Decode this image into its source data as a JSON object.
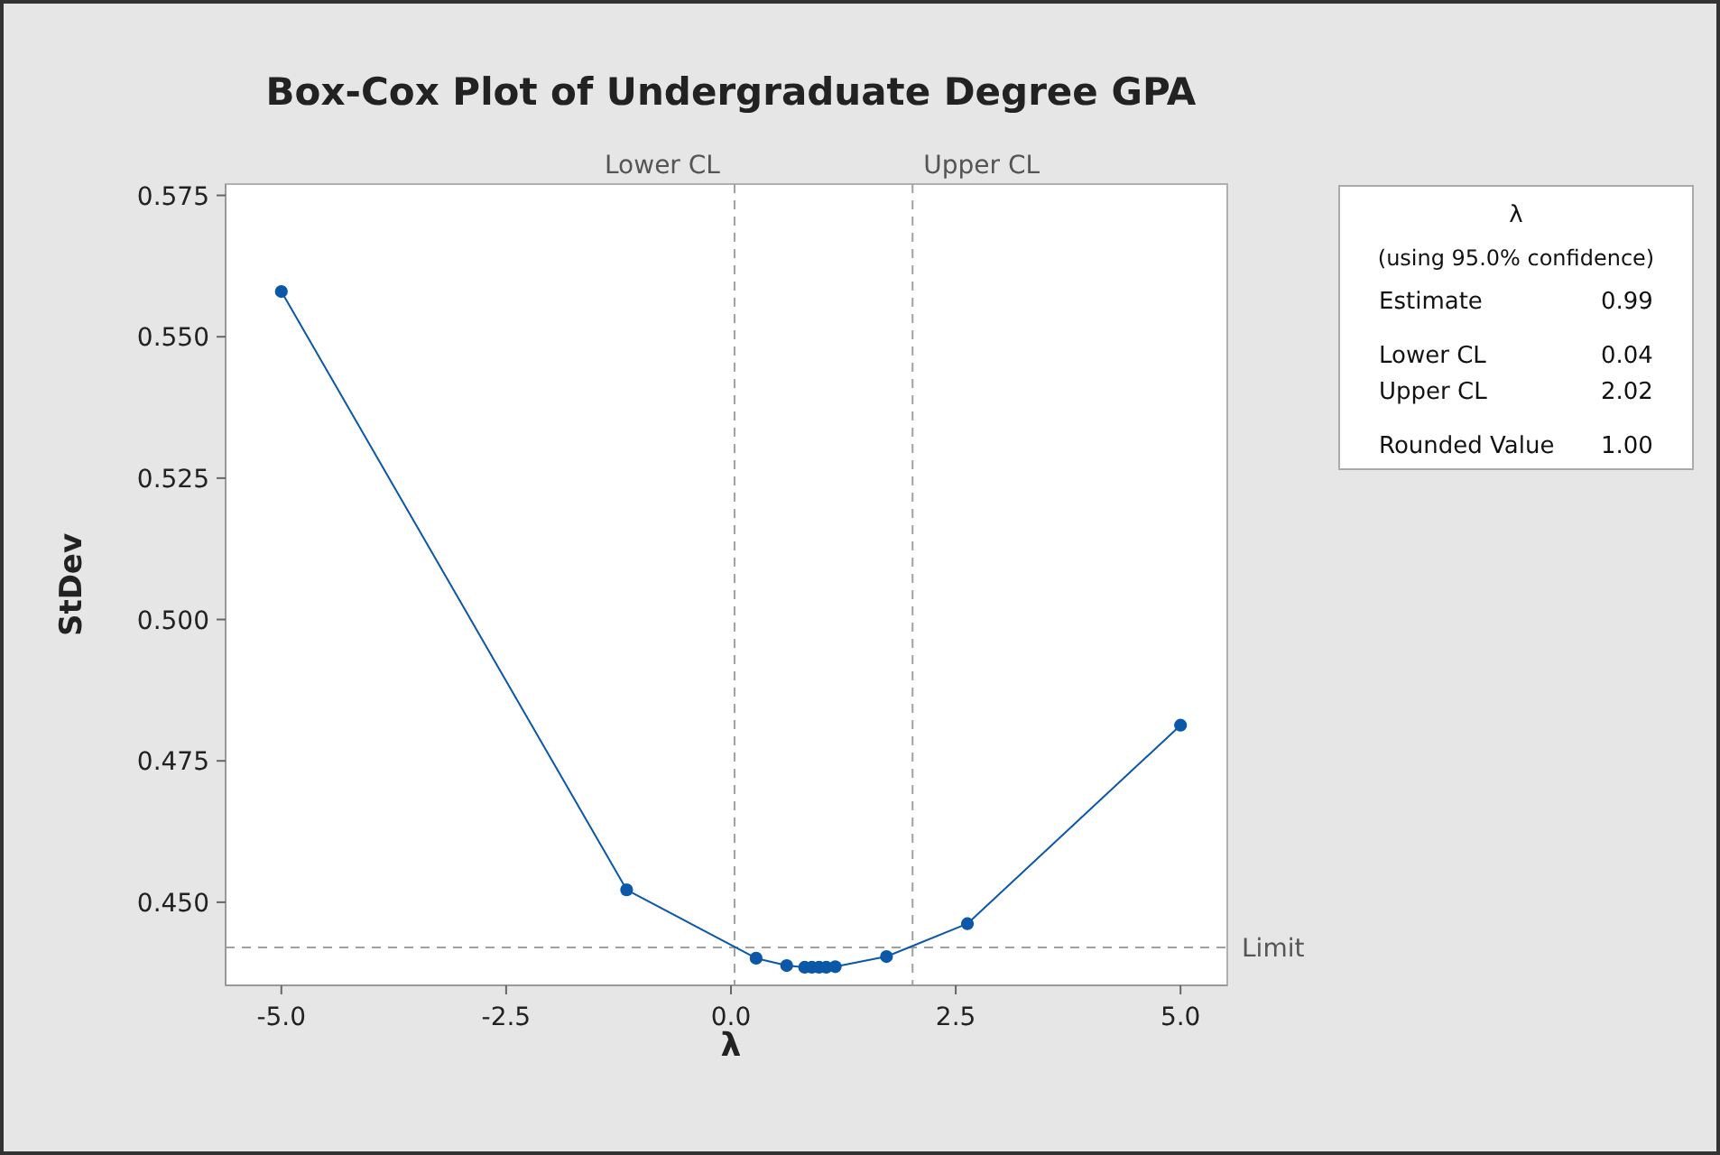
{
  "chart_data": {
    "type": "line",
    "title": "Box-Cox Plot of Undergraduate Degree GPA",
    "xlabel": "λ",
    "ylabel": "StDev",
    "x": [
      -5,
      -1.16,
      0.28,
      0.62,
      0.82,
      0.9,
      0.98,
      1.06,
      1.16,
      1.73,
      2.63,
      5
    ],
    "series": [
      {
        "color": "#0b57a8",
        "values": [
          0.558,
          0.4522,
          0.4401,
          0.4388,
          0.4385,
          0.4385,
          0.4385,
          0.4385,
          0.4386,
          0.4404,
          0.4462,
          0.4813
        ]
      }
    ],
    "marker": "circle",
    "line_style": "solid",
    "grid": false,
    "xlim": [
      -5.62,
      5.52
    ],
    "ylim": [
      0.4353,
      0.577
    ],
    "xticks": [
      {
        "value": -5,
        "label": "-5.0"
      },
      {
        "value": -2.5,
        "label": "-2.5"
      },
      {
        "value": 0,
        "label": "0.0"
      },
      {
        "value": 2.5,
        "label": "2.5"
      },
      {
        "value": 5,
        "label": "5.0"
      }
    ],
    "yticks": [
      {
        "value": 0.45,
        "label": "0.450"
      },
      {
        "value": 0.475,
        "label": "0.475"
      },
      {
        "value": 0.5,
        "label": "0.500"
      },
      {
        "value": 0.525,
        "label": "0.525"
      },
      {
        "value": 0.55,
        "label": "0.550"
      },
      {
        "value": 0.575,
        "label": "0.575"
      }
    ],
    "ref_lines": [
      {
        "axis": "x",
        "value": 0.04,
        "label": "Lower CL",
        "color": "#a0a0a0",
        "line_style": "dashed"
      },
      {
        "axis": "x",
        "value": 2.02,
        "label": "Upper CL",
        "color": "#a0a0a0",
        "line_style": "dashed"
      },
      {
        "axis": "y",
        "value": 0.442,
        "label": "Limit",
        "color": "#a0a0a0",
        "line_style": "dashed"
      }
    ],
    "annotations": [
      "λ",
      "(using 95.0% confidence)",
      "Estimate",
      "0.99",
      "Lower CL",
      "0.04",
      "Upper CL",
      "2.02",
      "Rounded Value",
      "1.00"
    ]
  }
}
